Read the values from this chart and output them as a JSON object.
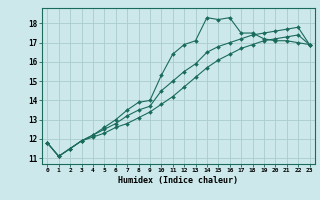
{
  "title": "",
  "xlabel": "Humidex (Indice chaleur)",
  "ylabel": "",
  "background_color": "#cce8ea",
  "grid_color": "#aacccc",
  "line_color": "#1a6b5a",
  "xlim": [
    -0.5,
    23.5
  ],
  "ylim": [
    10.7,
    18.8
  ],
  "yticks": [
    11,
    12,
    13,
    14,
    15,
    16,
    17,
    18
  ],
  "xticks": [
    0,
    1,
    2,
    3,
    4,
    5,
    6,
    7,
    8,
    9,
    10,
    11,
    12,
    13,
    14,
    15,
    16,
    17,
    18,
    19,
    20,
    21,
    22,
    23
  ],
  "series": [
    {
      "x": [
        0,
        1,
        2,
        3,
        4,
        5,
        6,
        7,
        8,
        9,
        10,
        11,
        12,
        13,
        14,
        15,
        16,
        17,
        18,
        19,
        20,
        21,
        22,
        23
      ],
      "y": [
        11.8,
        11.1,
        11.5,
        11.9,
        12.2,
        12.6,
        13.0,
        13.5,
        13.9,
        14.0,
        15.3,
        16.4,
        16.9,
        17.1,
        18.3,
        18.2,
        18.3,
        17.5,
        17.5,
        17.2,
        17.1,
        17.1,
        17.0,
        16.9
      ]
    },
    {
      "x": [
        0,
        1,
        2,
        3,
        4,
        5,
        6,
        7,
        8,
        9,
        10,
        11,
        12,
        13,
        14,
        15,
        16,
        17,
        18,
        19,
        20,
        21,
        22,
        23
      ],
      "y": [
        11.8,
        11.1,
        11.5,
        11.9,
        12.2,
        12.5,
        12.8,
        13.2,
        13.5,
        13.7,
        14.5,
        15.0,
        15.5,
        15.9,
        16.5,
        16.8,
        17.0,
        17.2,
        17.4,
        17.5,
        17.6,
        17.7,
        17.8,
        16.9
      ]
    },
    {
      "x": [
        0,
        1,
        2,
        3,
        4,
        5,
        6,
        7,
        8,
        9,
        10,
        11,
        12,
        13,
        14,
        15,
        16,
        17,
        18,
        19,
        20,
        21,
        22,
        23
      ],
      "y": [
        11.8,
        11.1,
        11.5,
        11.9,
        12.1,
        12.3,
        12.6,
        12.8,
        13.1,
        13.4,
        13.8,
        14.2,
        14.7,
        15.2,
        15.7,
        16.1,
        16.4,
        16.7,
        16.9,
        17.1,
        17.2,
        17.3,
        17.4,
        16.9
      ]
    }
  ]
}
